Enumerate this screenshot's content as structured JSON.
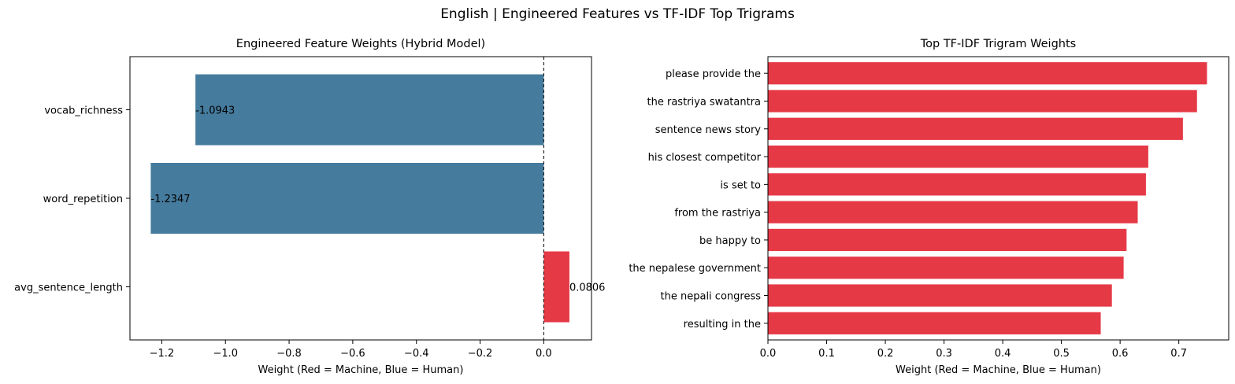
{
  "figure": {
    "suptitle": "English | Engineered Features vs TF-IDF Top Trigrams"
  },
  "colors": {
    "human": "#457b9d",
    "machine": "#e63946",
    "zero_line": "#000000"
  },
  "chart_data": [
    {
      "type": "bar",
      "orientation": "horizontal",
      "title": "Engineered Feature Weights (Hybrid Model)",
      "xlabel": "Weight (Red = Machine, Blue = Human)",
      "ylabel": "",
      "categories": [
        "vocab_richness",
        "word_repetition",
        "avg_sentence_length"
      ],
      "values": [
        -1.0943,
        -1.2347,
        0.0806
      ],
      "value_labels": [
        "-1.0943",
        "-1.2347",
        "0.0806"
      ],
      "xlim": [
        -1.3,
        0.15
      ],
      "xticks": [
        -1.2,
        -1.0,
        -0.8,
        -0.6,
        -0.4,
        -0.2,
        0.0
      ],
      "xtick_labels": [
        "−1.2",
        "−1.0",
        "−0.8",
        "−0.6",
        "−0.4",
        "−0.2",
        "0.0"
      ],
      "zero_reference_line": true,
      "grid": false
    },
    {
      "type": "bar",
      "orientation": "horizontal",
      "title": "Top TF-IDF Trigram Weights",
      "xlabel": "Weight (Red = Machine, Blue = Human)",
      "ylabel": "",
      "categories": [
        "please provide the",
        "the rastriya swatantra",
        "sentence news story",
        "his closest competitor",
        "is set to",
        "from the rastriya",
        "be happy to",
        "the nepalese government",
        "the nepali congress",
        "resulting in the"
      ],
      "values": [
        0.748,
        0.731,
        0.707,
        0.648,
        0.644,
        0.63,
        0.611,
        0.606,
        0.586,
        0.567
      ],
      "xlim": [
        0,
        0.785
      ],
      "xticks": [
        0.0,
        0.1,
        0.2,
        0.3,
        0.4,
        0.5,
        0.6,
        0.7
      ],
      "xtick_labels": [
        "0.0",
        "0.1",
        "0.2",
        "0.3",
        "0.4",
        "0.5",
        "0.6",
        "0.7"
      ],
      "grid": false
    }
  ]
}
